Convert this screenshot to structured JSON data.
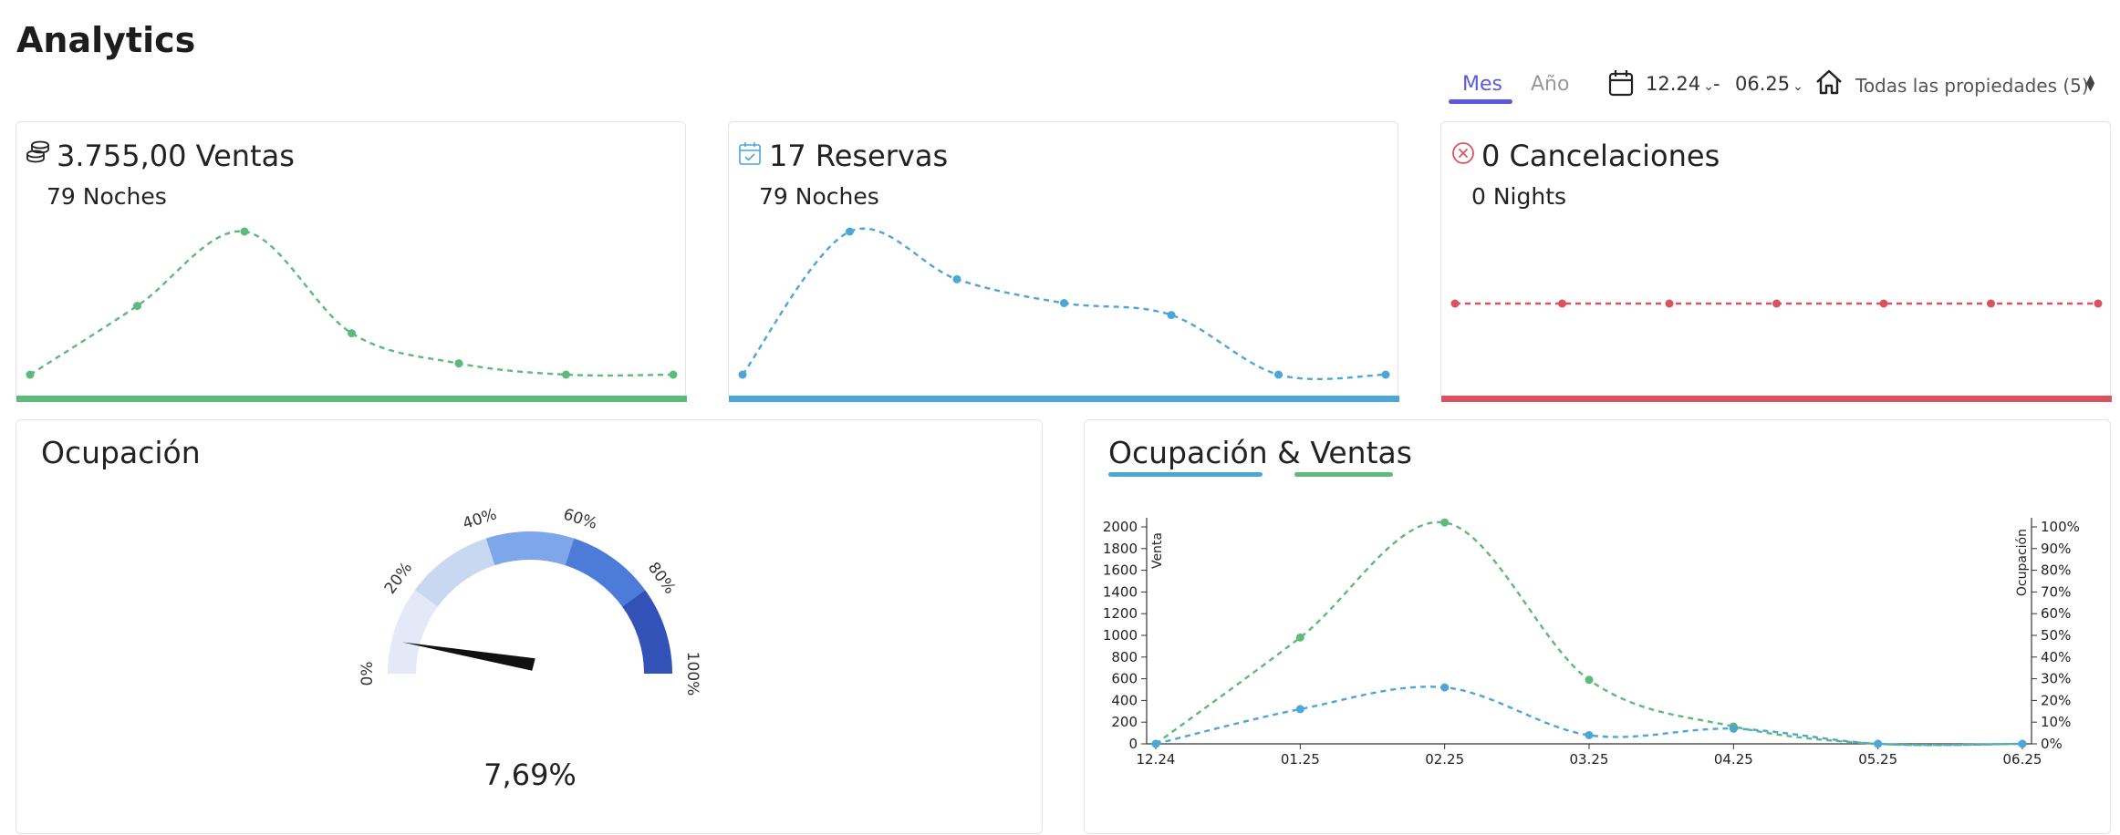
{
  "page": {
    "title": "Analytics"
  },
  "filters": {
    "tabs": [
      "Mes",
      "Año"
    ],
    "active_tab": "Mes",
    "date_from": "12.24",
    "date_sep": "-",
    "date_to": "06.25",
    "property": "Todas las propiedades (5)"
  },
  "kpis": {
    "ventas": {
      "title": "3.755,00 Ventas",
      "subtitle": "79 Noches",
      "color": "#5dba7a",
      "icon": "coins-icon"
    },
    "reservas": {
      "title": "17 Reservas",
      "subtitle": "79 Noches",
      "color": "#4ea6d6",
      "icon": "calendar-check-icon"
    },
    "cancelaciones": {
      "title": "0 Cancelaciones",
      "subtitle": "0 Nights",
      "color": "#d9535e",
      "icon": "x-circle-icon"
    }
  },
  "occupancy": {
    "title": "Ocupación",
    "value_label": "7,69%",
    "value": 7.69,
    "ticks": [
      "0%",
      "20%",
      "40%",
      "60%",
      "80%",
      "100%"
    ],
    "band_colors": [
      "#e4e9f8",
      "#c9d8f1",
      "#7ea6ea",
      "#4c7bd8",
      "#3352b8"
    ]
  },
  "combo": {
    "title_part1": "Ocupación",
    "title_amp": "&",
    "title_part2": "Ventas"
  },
  "chart_data": [
    {
      "type": "line",
      "name": "kpi-ventas-spark",
      "x": [
        "12.24",
        "01.25",
        "02.25",
        "03.25",
        "04.25",
        "05.25",
        "06.25"
      ],
      "values": [
        0,
        980,
        2040,
        590,
        160,
        0,
        0
      ],
      "color": "#5dba7a"
    },
    {
      "type": "line",
      "name": "kpi-reservas-spark",
      "x": [
        "12.24",
        "01.25",
        "02.25",
        "03.25",
        "04.25",
        "05.25",
        "06.25"
      ],
      "values": [
        0,
        6,
        4,
        3,
        2.5,
        0,
        0
      ],
      "color": "#4ea6d6"
    },
    {
      "type": "line",
      "name": "kpi-cancel-spark",
      "x": [
        "12.24",
        "01.25",
        "02.25",
        "03.25",
        "04.25",
        "05.25",
        "06.25"
      ],
      "values": [
        0,
        0,
        0,
        0,
        0,
        0,
        0
      ],
      "color": "#d9535e"
    },
    {
      "type": "line",
      "name": "ocupacion-ventas",
      "categories": [
        "12.24",
        "01.25",
        "02.25",
        "03.25",
        "04.25",
        "05.25",
        "06.25"
      ],
      "series": [
        {
          "values": [
            0,
            980,
            2040,
            590,
            160,
            0,
            0
          ],
          "color": "#5dba7a",
          "axis": "left"
        },
        {
          "values": [
            0,
            16,
            26,
            4,
            7,
            0,
            0
          ],
          "color": "#4ea6d6",
          "axis": "right"
        }
      ],
      "ylabel": "Venta",
      "y2label": "Ocupación",
      "yticks": [
        "0",
        "200",
        "400",
        "600",
        "800",
        "1000",
        "1200",
        "1400",
        "1600",
        "1800",
        "2000"
      ],
      "y2ticks": [
        "0%",
        "10%",
        "20%",
        "30%",
        "40%",
        "50%",
        "60%",
        "70%",
        "80%",
        "90%",
        "100%"
      ],
      "ylim": [
        0,
        2000
      ],
      "y2lim": [
        0,
        100
      ]
    }
  ]
}
